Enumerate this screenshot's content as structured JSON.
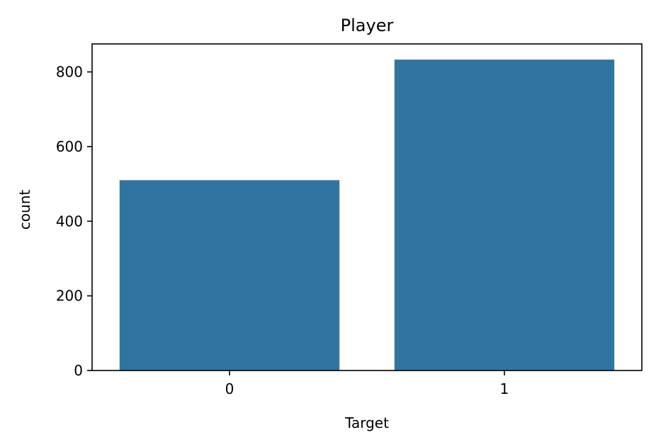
{
  "chart_data": {
    "type": "bar",
    "title": "Player",
    "xlabel": "Target",
    "ylabel": "count",
    "categories": [
      "0",
      "1"
    ],
    "values": [
      510,
      833
    ],
    "ylim": [
      0,
      875
    ],
    "yticks": [
      0,
      200,
      400,
      600,
      800
    ],
    "bar_color": "#3274a1",
    "grid": false,
    "legend": "none"
  }
}
